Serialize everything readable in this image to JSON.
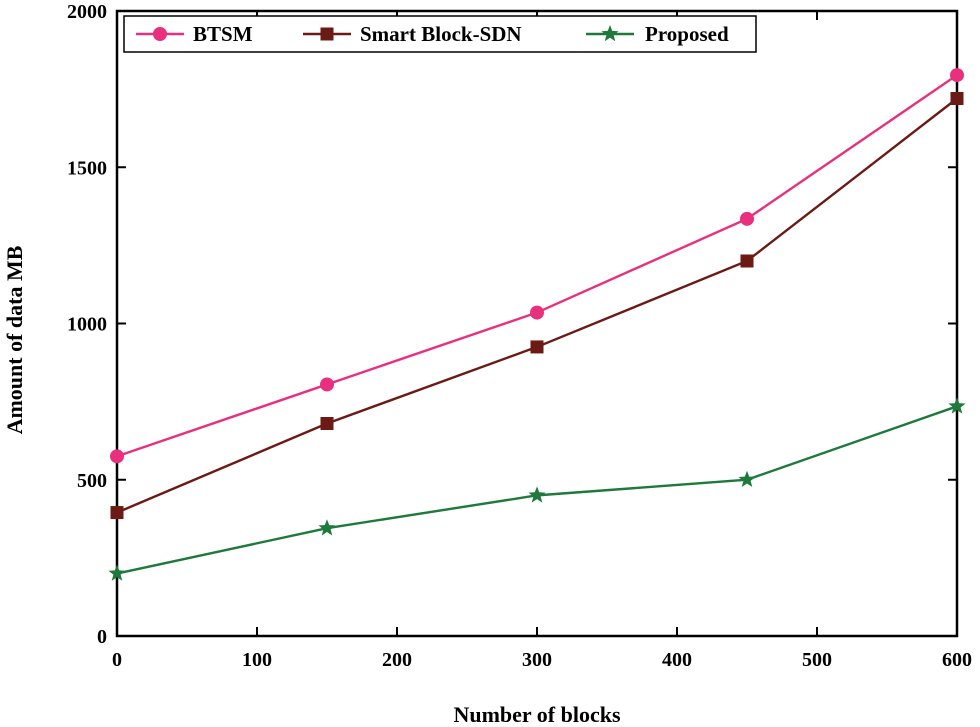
{
  "chart_data": {
    "type": "line",
    "title": "",
    "xlabel": "Number of blocks",
    "ylabel": "Amount of data MB",
    "xlim": [
      0,
      600
    ],
    "ylim": [
      0,
      2000
    ],
    "xticks": [
      0,
      100,
      200,
      300,
      400,
      500,
      600
    ],
    "yticks": [
      0,
      500,
      1000,
      1500,
      2000
    ],
    "legend_position": "top",
    "series": [
      {
        "name": "BTSM",
        "color": "#e8307f",
        "marker": "circle",
        "x": [
          0,
          150,
          300,
          450,
          600
        ],
        "y": [
          575,
          805,
          1035,
          1335,
          1795
        ]
      },
      {
        "name": "Smart Block-SDN",
        "color": "#6b1a14",
        "marker": "square",
        "x": [
          0,
          150,
          300,
          450,
          600
        ],
        "y": [
          395,
          680,
          925,
          1200,
          1720
        ]
      },
      {
        "name": "Proposed",
        "color": "#1e7a3c",
        "marker": "star",
        "x": [
          0,
          150,
          300,
          450,
          600
        ],
        "y": [
          200,
          345,
          450,
          500,
          735
        ]
      }
    ]
  }
}
